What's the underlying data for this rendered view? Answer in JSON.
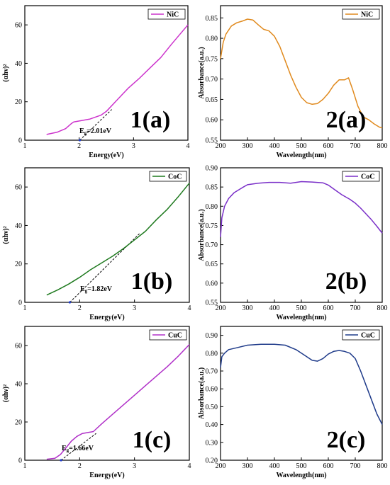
{
  "chart_data": [
    {
      "id": "1a",
      "type": "line",
      "panel_label": "1(a)",
      "xlabel": "Energy(eV)",
      "ylabel": "(αhν)²",
      "xlim": [
        1,
        4
      ],
      "ylim": [
        0,
        70
      ],
      "xticks": [
        1,
        2,
        3,
        4
      ],
      "yticks": [
        0,
        20,
        40,
        60
      ],
      "color": "#cc33cc",
      "series": [
        {
          "name": "NiC",
          "x": [
            1.4,
            1.6,
            1.75,
            1.85,
            1.9,
            2.0,
            2.2,
            2.4,
            2.5,
            2.7,
            2.9,
            3.1,
            3.3,
            3.5,
            3.7,
            3.85,
            4.0
          ],
          "y": [
            3.0,
            4.2,
            6.0,
            8.5,
            9.5,
            10.0,
            11.0,
            13.0,
            15.0,
            21.0,
            27.0,
            32.0,
            37.5,
            43.0,
            50.0,
            55.0,
            60.0
          ]
        }
      ],
      "fit": {
        "x": [
          2.01,
          2.6
        ],
        "y": [
          0,
          16
        ]
      },
      "band_gap_label": "E",
      "band_gap_sub": "g",
      "band_gap_value": "=2.01eV"
    },
    {
      "id": "2a",
      "type": "line",
      "panel_label": "2(a)",
      "xlabel": "Wavelength(nm)",
      "ylabel": "Absorbance(a.u.)",
      "xlim": [
        200,
        800
      ],
      "ylim": [
        0.55,
        0.88
      ],
      "xticks": [
        200,
        300,
        400,
        500,
        600,
        700,
        800
      ],
      "yticks": [
        0.55,
        0.6,
        0.65,
        0.7,
        0.75,
        0.8,
        0.85
      ],
      "color": "#e08a1e",
      "series": [
        {
          "name": "NiC",
          "x": [
            200,
            210,
            220,
            240,
            260,
            280,
            300,
            320,
            340,
            360,
            380,
            400,
            420,
            440,
            460,
            480,
            500,
            520,
            540,
            560,
            580,
            600,
            620,
            640,
            660,
            675,
            690,
            710,
            730,
            750,
            770,
            790,
            800
          ],
          "y": [
            0.75,
            0.79,
            0.81,
            0.83,
            0.838,
            0.842,
            0.847,
            0.845,
            0.833,
            0.822,
            0.818,
            0.805,
            0.78,
            0.745,
            0.71,
            0.68,
            0.655,
            0.642,
            0.638,
            0.64,
            0.65,
            0.665,
            0.685,
            0.698,
            0.698,
            0.703,
            0.675,
            0.633,
            0.607,
            0.6,
            0.59,
            0.582,
            0.58
          ]
        }
      ]
    },
    {
      "id": "1b",
      "type": "line",
      "panel_label": "1(b)",
      "xlabel": "Energy(eV)",
      "ylabel": "(αhν)²",
      "xlim": [
        1,
        4
      ],
      "ylim": [
        0,
        70
      ],
      "xticks": [
        1,
        2,
        3,
        4
      ],
      "yticks": [
        0,
        20,
        40,
        60
      ],
      "color": "#1f7a1f",
      "series": [
        {
          "name": "CoC",
          "x": [
            1.4,
            1.6,
            1.8,
            2.0,
            2.2,
            2.4,
            2.6,
            2.8,
            3.0,
            3.2,
            3.4,
            3.6,
            3.8,
            4.0
          ],
          "y": [
            3.8,
            6.5,
            9.5,
            13.0,
            17.0,
            20.5,
            24.0,
            28.0,
            32.5,
            37.0,
            43.0,
            48.5,
            55.0,
            62.0
          ]
        }
      ],
      "fit": {
        "x": [
          1.82,
          3.1
        ],
        "y": [
          0,
          36
        ]
      },
      "band_gap_label": "E",
      "band_gap_sub": "g",
      "band_gap_value": "=1.82eV"
    },
    {
      "id": "2b",
      "type": "line",
      "panel_label": "2(b)",
      "xlabel": "Wavelength(nm)",
      "ylabel": "Absorbance(a.u.)",
      "xlim": [
        200,
        800
      ],
      "ylim": [
        0.55,
        0.9
      ],
      "xticks": [
        200,
        300,
        400,
        500,
        600,
        700,
        800
      ],
      "yticks": [
        0.55,
        0.6,
        0.65,
        0.7,
        0.75,
        0.8,
        0.85,
        0.9
      ],
      "color": "#7a2fc8",
      "series": [
        {
          "name": "CoC",
          "x": [
            200,
            205,
            215,
            230,
            250,
            280,
            300,
            340,
            380,
            420,
            460,
            500,
            540,
            580,
            600,
            620,
            650,
            680,
            700,
            720,
            740,
            760,
            780,
            800
          ],
          "y": [
            0.72,
            0.77,
            0.8,
            0.82,
            0.835,
            0.848,
            0.856,
            0.86,
            0.862,
            0.862,
            0.86,
            0.864,
            0.863,
            0.861,
            0.855,
            0.845,
            0.83,
            0.818,
            0.808,
            0.795,
            0.78,
            0.765,
            0.748,
            0.73
          ]
        }
      ]
    },
    {
      "id": "1c",
      "type": "line",
      "panel_label": "1(c)",
      "xlabel": "Energy(eV)",
      "ylabel": "(αhν)²",
      "xlim": [
        1,
        4
      ],
      "ylim": [
        0,
        70
      ],
      "xticks": [
        1,
        2,
        3,
        4
      ],
      "yticks": [
        0,
        20,
        40,
        60
      ],
      "color": "#b030c8",
      "series": [
        {
          "name": "CuC",
          "x": [
            1.4,
            1.55,
            1.65,
            1.75,
            1.85,
            1.95,
            2.05,
            2.15,
            2.25,
            2.4,
            2.6,
            2.8,
            3.0,
            3.2,
            3.4,
            3.6,
            3.8,
            4.0
          ],
          "y": [
            0.5,
            1.0,
            3.0,
            6.5,
            10.0,
            12.5,
            14.0,
            14.5,
            15.0,
            19.0,
            24.0,
            29.0,
            34.0,
            39.0,
            44.0,
            49.0,
            54.5,
            60.5
          ]
        }
      ],
      "fit": {
        "x": [
          1.66,
          2.3
        ],
        "y": [
          0,
          14
        ]
      },
      "band_gap_label": "E",
      "band_gap_sub": "g",
      "band_gap_value": "=1.66eV"
    },
    {
      "id": "2c",
      "type": "line",
      "panel_label": "2(c)",
      "xlabel": "Wavelength(nm)",
      "ylabel": "Absorbance(a.u.)",
      "xlim": [
        200,
        800
      ],
      "ylim": [
        0.2,
        0.95
      ],
      "xticks": [
        200,
        300,
        400,
        500,
        600,
        700,
        800
      ],
      "yticks": [
        0.2,
        0.3,
        0.4,
        0.5,
        0.6,
        0.7,
        0.8,
        0.9
      ],
      "color": "#1f3b8a",
      "series": [
        {
          "name": "CuC",
          "x": [
            200,
            205,
            215,
            230,
            260,
            300,
            350,
            400,
            440,
            480,
            510,
            540,
            560,
            580,
            600,
            620,
            640,
            660,
            680,
            700,
            720,
            740,
            760,
            780,
            800
          ],
          "y": [
            0.72,
            0.78,
            0.8,
            0.82,
            0.83,
            0.845,
            0.85,
            0.85,
            0.845,
            0.82,
            0.79,
            0.76,
            0.755,
            0.77,
            0.795,
            0.81,
            0.815,
            0.81,
            0.8,
            0.77,
            0.7,
            0.62,
            0.54,
            0.46,
            0.4
          ]
        }
      ]
    }
  ]
}
